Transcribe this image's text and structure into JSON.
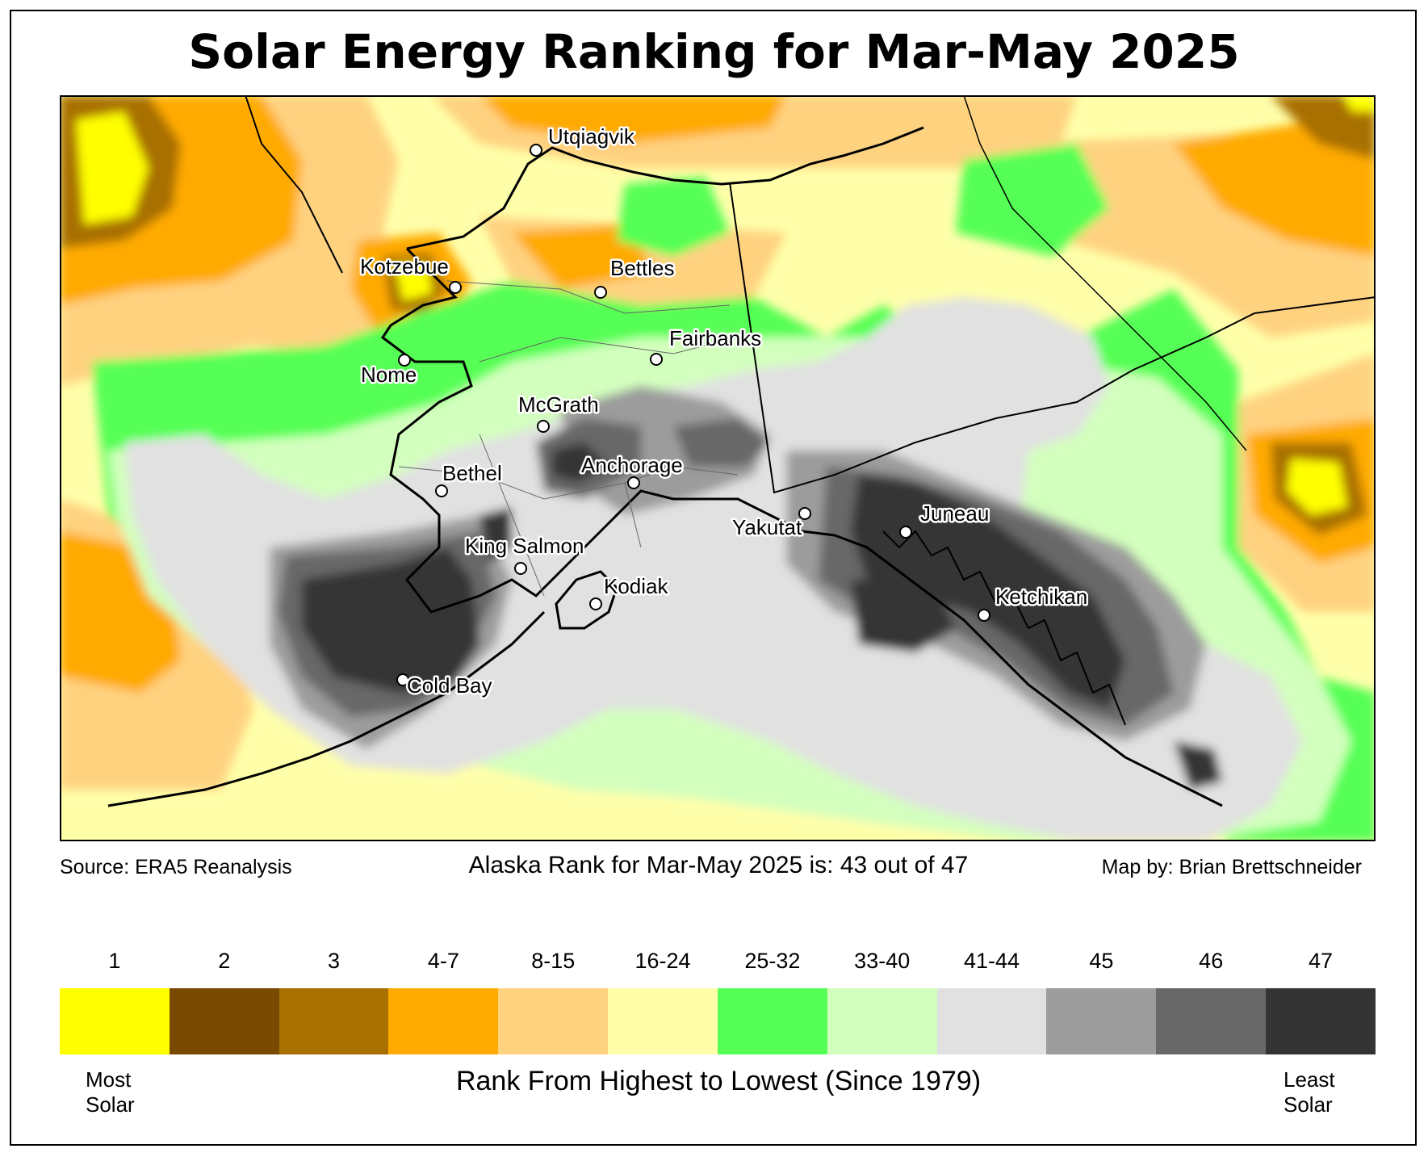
{
  "title": "Solar Energy Ranking for Mar-May 2025",
  "footer": {
    "source": "Source: ERA5 Reanalysis",
    "summary": "Alaska Rank for Mar-May 2025 is: 43 out of 47",
    "credit": "Map by: Brian Brettschneider"
  },
  "legend": {
    "bins": [
      {
        "label": "1",
        "color": "#ffff00"
      },
      {
        "label": "2",
        "color": "#7a4a00"
      },
      {
        "label": "3",
        "color": "#a87000"
      },
      {
        "label": "4-7",
        "color": "#ffaa00"
      },
      {
        "label": "8-15",
        "color": "#ffd280"
      },
      {
        "label": "16-24",
        "color": "#ffffaa"
      },
      {
        "label": "25-32",
        "color": "#55ff55"
      },
      {
        "label": "33-40",
        "color": "#d3ffbe"
      },
      {
        "label": "41-44",
        "color": "#e1e1e1"
      },
      {
        "label": "45",
        "color": "#9c9c9c"
      },
      {
        "label": "46",
        "color": "#686868"
      },
      {
        "label": "47",
        "color": "#343434"
      }
    ],
    "left_end": "Most Solar",
    "right_end": "Least Solar",
    "axis_title": "Rank From Highest to Lowest (Since 1979)"
  },
  "cities": [
    {
      "name": "Utqiaġvik"
    },
    {
      "name": "Kotzebue"
    },
    {
      "name": "Bettles"
    },
    {
      "name": "Fairbanks"
    },
    {
      "name": "Nome"
    },
    {
      "name": "McGrath"
    },
    {
      "name": "Anchorage"
    },
    {
      "name": "Bethel"
    },
    {
      "name": "Yakutat"
    },
    {
      "name": "Juneau"
    },
    {
      "name": "King Salmon"
    },
    {
      "name": "Kodiak"
    },
    {
      "name": "Ketchikan"
    },
    {
      "name": "Cold Bay"
    }
  ]
}
